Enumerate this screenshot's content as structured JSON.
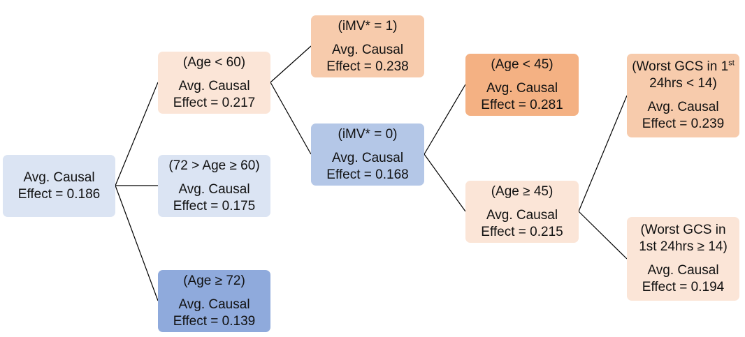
{
  "nodes": {
    "root": {
      "label": "Avg. Causal",
      "effect": "Effect = 0.186",
      "color": "#dbe4f3"
    },
    "a": {
      "condition": "(Age < 60)",
      "label": "Avg. Causal",
      "effect": "Effect = 0.217",
      "color": "#fbe5d7"
    },
    "b": {
      "condition": "(72 > Age ≥ 60)",
      "label": "Avg. Causal",
      "effect": "Effect = 0.175",
      "color": "#dbe4f3"
    },
    "c": {
      "condition": "(Age ≥ 72)",
      "label": "Avg. Causal",
      "effect": "Effect = 0.139",
      "color": "#8faadc"
    },
    "imv1": {
      "condition": "(iMV* = 1)",
      "label": "Avg. Causal",
      "effect": "Effect = 0.238",
      "color": "#f7cbac"
    },
    "imv0": {
      "condition": "(iMV* = 0)",
      "label": "Avg. Causal",
      "effect": "Effect = 0.168",
      "color": "#b4c7e7"
    },
    "lt45": {
      "condition": "(Age < 45)",
      "label": "Avg. Causal",
      "effect": "Effect = 0.281",
      "color": "#f4b183"
    },
    "ge45": {
      "condition": "(Age ≥ 45)",
      "label": "Avg. Causal",
      "effect": "Effect = 0.215",
      "color": "#fbe5d7"
    },
    "gcs1": {
      "condition_line1": "(Worst GCS in 1",
      "condition_sup": "st",
      "condition_line2": "24hrs < 14)",
      "label": "Avg. Causal",
      "effect": "Effect = 0.239",
      "color": "#f7cbac"
    },
    "gcs2": {
      "condition_line1": "(Worst GCS in",
      "condition_line2": "1st 24hrs ≥ 14)",
      "label": "Avg. Causal",
      "effect": "Effect = 0.194",
      "color": "#fbe5d7"
    }
  },
  "edges": [
    [
      "root",
      "a"
    ],
    [
      "root",
      "b"
    ],
    [
      "root",
      "c"
    ],
    [
      "a",
      "imv1"
    ],
    [
      "a",
      "imv0"
    ],
    [
      "imv0",
      "lt45"
    ],
    [
      "imv0",
      "ge45"
    ],
    [
      "ge45",
      "gcs1"
    ],
    [
      "ge45",
      "gcs2"
    ]
  ]
}
